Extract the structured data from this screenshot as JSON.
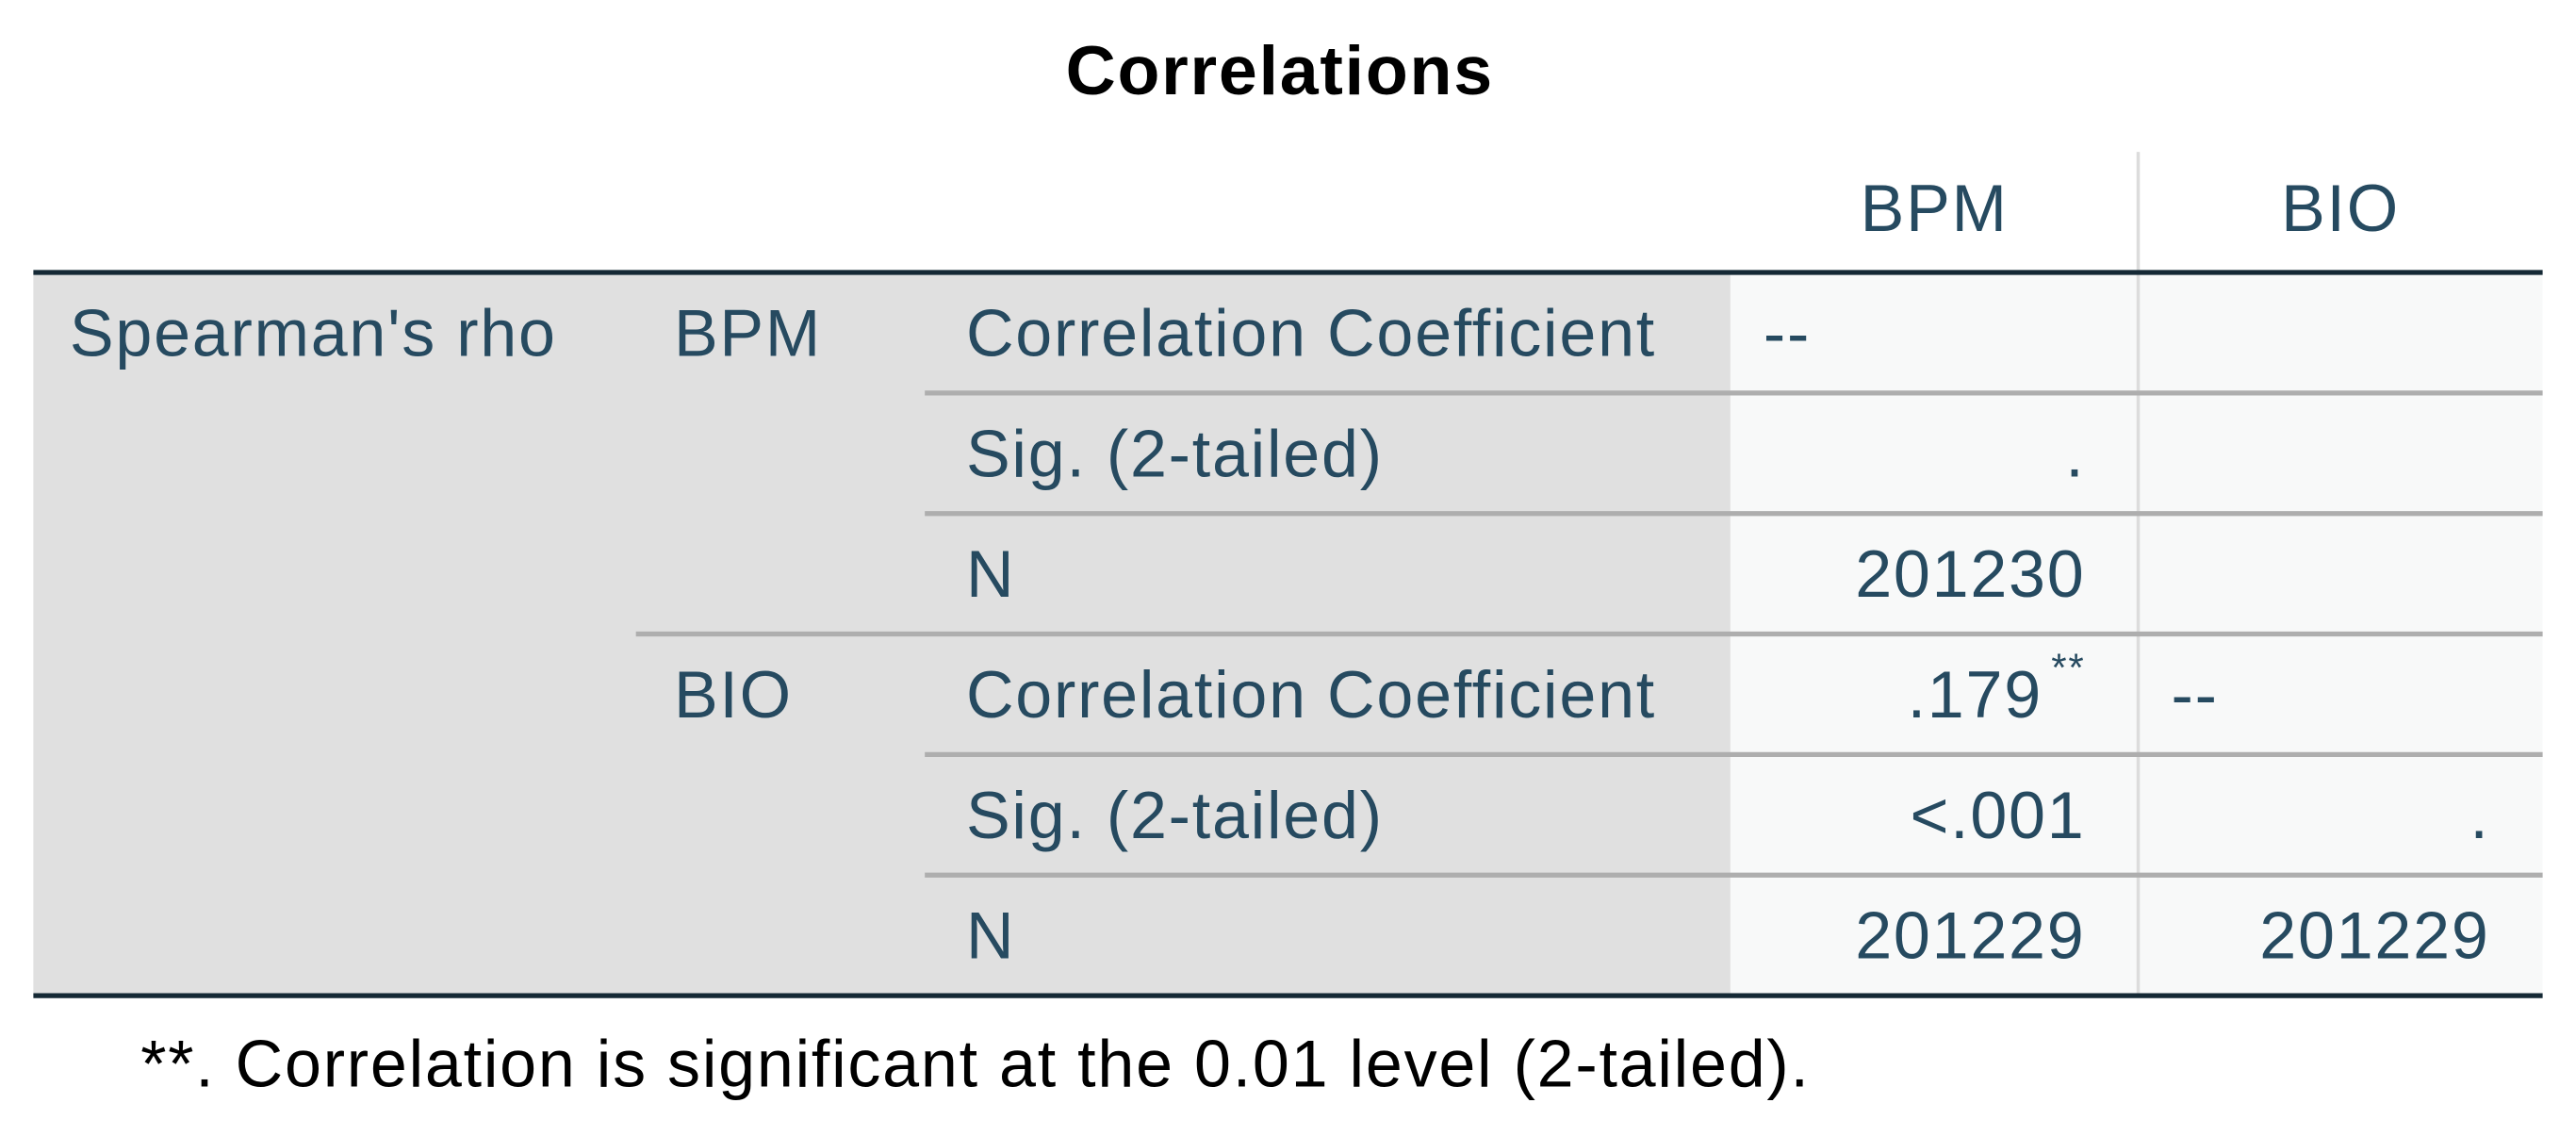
{
  "title": "Correlations",
  "table": {
    "columns": [
      "BPM",
      "BIO"
    ],
    "method": "Spearman's rho",
    "groups": [
      {
        "label": "BPM",
        "rows": [
          {
            "stat": "Correlation Coefficient",
            "cells": [
              "--",
              null
            ]
          },
          {
            "stat": "Sig. (2-tailed)",
            "cells": [
              ".",
              null
            ]
          },
          {
            "stat": "N",
            "cells": [
              "201230",
              null
            ]
          }
        ]
      },
      {
        "label": "BIO",
        "rows": [
          {
            "stat": "Correlation Coefficient",
            "cells": [
              {
                "text": ".179",
                "sup": "**"
              },
              "--"
            ]
          },
          {
            "stat": "Sig. (2-tailed)",
            "cells": [
              "<.001",
              "."
            ]
          },
          {
            "stat": "N",
            "cells": [
              "201229",
              "201229"
            ]
          }
        ]
      }
    ]
  },
  "footnote": "**. Correlation is significant at the 0.01 level (2-tailed)."
}
